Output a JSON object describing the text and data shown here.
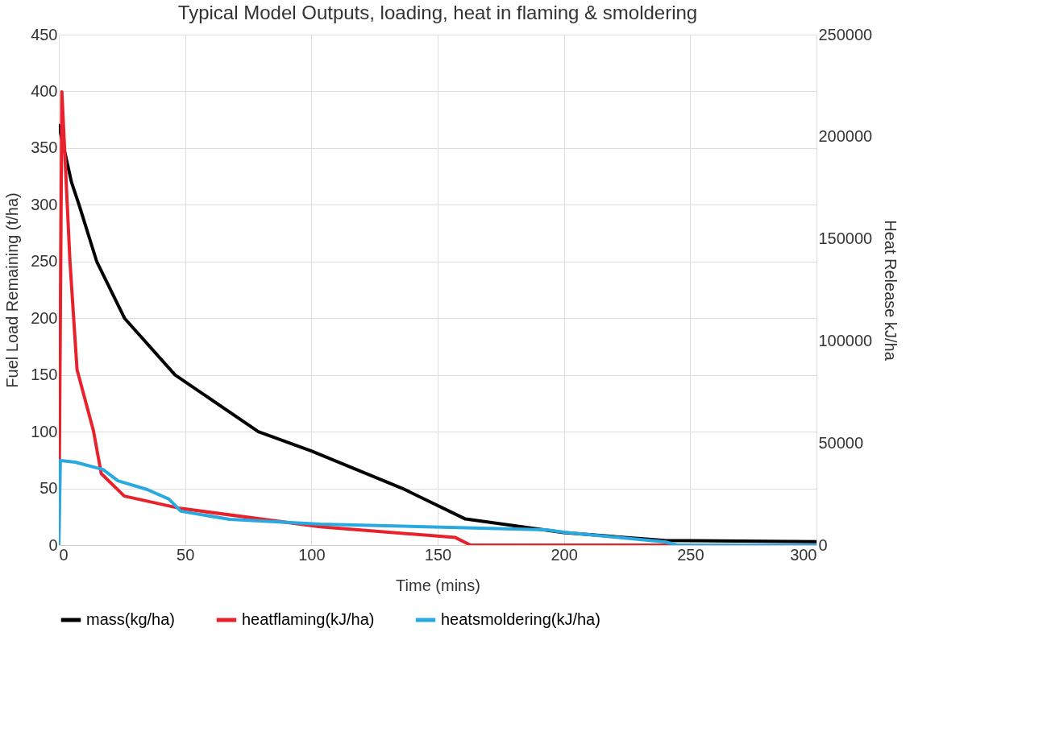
{
  "chart_data": {
    "type": "line",
    "title": "Typical Model Outputs, loading, heat in flaming & smoldering",
    "xlabel": "Time (mins)",
    "ylabel": "Fuel Load Remaining (t/ha)",
    "y2label": "Heat Release kJ/ha",
    "xlim": [
      0,
      300
    ],
    "xticks": [
      0,
      50,
      100,
      150,
      200,
      250,
      300
    ],
    "ylim": [
      0,
      450
    ],
    "yticks": [
      0,
      50,
      100,
      150,
      200,
      250,
      300,
      350,
      400,
      450
    ],
    "y2lim": [
      0,
      250000
    ],
    "y2ticks": [
      0,
      50000,
      100000,
      150000,
      200000,
      250000
    ],
    "grid": true,
    "legend": "bottom",
    "marker": "none",
    "line_style": "solid",
    "series": [
      {
        "name": "mass(kg/ha)",
        "color": "#000000",
        "x": [
          0,
          2,
          5,
          8,
          15,
          26,
          46,
          79,
          100,
          136,
          161,
          200,
          240,
          300
        ],
        "values": [
          370,
          350,
          320,
          300,
          250,
          200,
          150,
          100,
          83,
          50,
          23,
          11,
          4,
          3
        ]
      },
      {
        "name": "heatflaming(kJ/ha)",
        "color": "#e8212a",
        "axis": "y2",
        "x": [
          0,
          1.2,
          4.4,
          7.2,
          13.7,
          16.8,
          25.9,
          48,
          103.5,
          157,
          163,
          300
        ],
        "values": [
          0,
          222000,
          139000,
          86000,
          56000,
          35000,
          24000,
          18000,
          9000,
          3700,
          0,
          0
        ]
      },
      {
        "name": "heatsmoldering(kJ/ha)",
        "color": "#29a9e0",
        "axis": "y2",
        "x": [
          0,
          0.6,
          6.5,
          17.5,
          23.4,
          35,
          43.6,
          48.3,
          67.7,
          103.5,
          193,
          200,
          240,
          245,
          300
        ],
        "values": [
          0,
          41400,
          40600,
          37000,
          31500,
          27200,
          22500,
          16600,
          12600,
          10300,
          7500,
          6300,
          1600,
          0,
          0
        ]
      }
    ]
  }
}
